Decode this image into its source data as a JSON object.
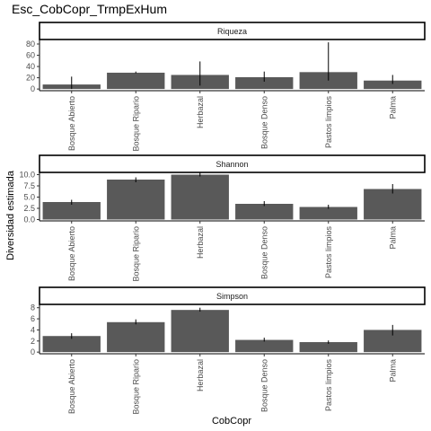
{
  "title": "Esc_CobCopr_TrmpExHum",
  "ylabel": "Diversidad estimada",
  "xlabel": "CobCopr",
  "chart_data": {
    "type": "bar",
    "facets": [
      "Riqueza",
      "Shannon",
      "Simpson"
    ],
    "categories": [
      "Bosque Abierto",
      "Bosque Ripario",
      "Herbazal",
      "Bosque Denso",
      "Pastos limpios",
      "Palma"
    ],
    "panels": [
      {
        "strip": "Riqueza",
        "values": [
          8,
          29,
          25,
          21,
          30,
          15
        ],
        "err_low": [
          0,
          28,
          6,
          13,
          15,
          9
        ],
        "err_high": [
          22,
          31,
          49,
          31,
          83,
          25
        ],
        "yticks": [
          0,
          20,
          40,
          60,
          80
        ],
        "ylim": [
          -3,
          88
        ]
      },
      {
        "strip": "Shannon",
        "values": [
          3.9,
          8.9,
          10.0,
          3.5,
          2.8,
          6.8
        ],
        "err_low": [
          3.3,
          8.3,
          9.6,
          3.0,
          2.4,
          5.8
        ],
        "err_high": [
          4.4,
          9.4,
          10.5,
          4.1,
          3.3,
          7.9
        ],
        "yticks": [
          0.0,
          2.5,
          5.0,
          7.5,
          10.0
        ],
        "ytick_labels": [
          "0.0",
          "2.5",
          "5.0",
          "7.5",
          "10.0"
        ],
        "ylim": [
          -0.3,
          10.5
        ]
      },
      {
        "strip": "Simpson",
        "values": [
          2.9,
          5.4,
          7.6,
          2.2,
          1.8,
          4.0
        ],
        "err_low": [
          2.4,
          5.0,
          7.3,
          1.9,
          1.5,
          3.0
        ],
        "err_high": [
          3.4,
          5.9,
          8.0,
          2.6,
          2.1,
          4.9
        ],
        "yticks": [
          0,
          2,
          4,
          6,
          8
        ],
        "ylim": [
          -0.3,
          8.6
        ]
      }
    ],
    "bar_color": "#595959",
    "errorbar_color": "#000000",
    "grid": false
  }
}
